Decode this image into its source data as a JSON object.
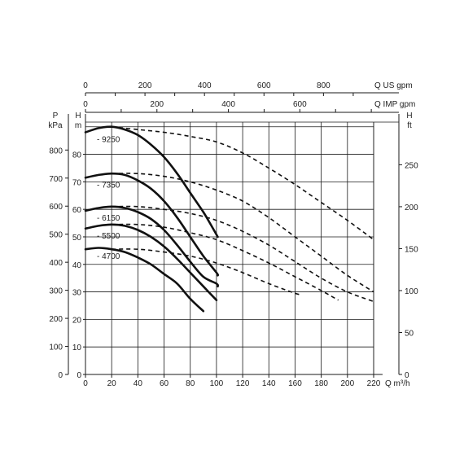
{
  "chart_data": {
    "type": "line",
    "axes": {
      "top_us_gpm": {
        "label": "Q US gpm",
        "ticks": [
          "0",
          "200",
          "400",
          "600",
          "800"
        ],
        "range": [
          0,
          968.7
        ]
      },
      "top_imp_gpm": {
        "label": "Q IMP gpm",
        "ticks": [
          "0",
          "200",
          "400",
          "600"
        ],
        "range": [
          0,
          806.6
        ]
      },
      "bottom_q": {
        "label": "Q m³/h",
        "ticks": [
          "0",
          "20",
          "40",
          "60",
          "80",
          "100",
          "120",
          "140",
          "160",
          "180",
          "200",
          "220"
        ],
        "range": [
          0,
          220
        ]
      },
      "left_kpa": {
        "label_top": "P",
        "label_bottom": "kPa",
        "ticks": [
          "0",
          "100",
          "200",
          "300",
          "400",
          "500",
          "600",
          "700",
          "800"
        ],
        "range": [
          0,
          900
        ]
      },
      "left_m": {
        "label": "H",
        "unit": "m",
        "ticks": [
          "0",
          "10",
          "20",
          "30",
          "40",
          "50",
          "60",
          "70",
          "80"
        ],
        "range": [
          0,
          91.7
        ]
      },
      "right_ft": {
        "label": "H",
        "unit": "ft",
        "ticks": [
          "0",
          "50",
          "100",
          "150",
          "200",
          "250"
        ],
        "range": [
          0,
          301
        ]
      }
    },
    "grid": true,
    "series": [
      {
        "name": "9250",
        "solid": [
          [
            0,
            88
          ],
          [
            10,
            89.5
          ],
          [
            20,
            90
          ],
          [
            30,
            89
          ],
          [
            40,
            87
          ],
          [
            50,
            83.5
          ],
          [
            60,
            79
          ],
          [
            70,
            73
          ],
          [
            80,
            66
          ],
          [
            90,
            59
          ],
          [
            95,
            55
          ],
          [
            101,
            50
          ]
        ],
        "dashed": [
          [
            20,
            90
          ],
          [
            40,
            89
          ],
          [
            60,
            88
          ],
          [
            80,
            86.5
          ],
          [
            100,
            84.5
          ],
          [
            120,
            80.5
          ],
          [
            140,
            75
          ],
          [
            160,
            69
          ],
          [
            180,
            62.5
          ],
          [
            200,
            56
          ],
          [
            220,
            49
          ]
        ]
      },
      {
        "name": "7350",
        "solid": [
          [
            0,
            71.5
          ],
          [
            10,
            72.5
          ],
          [
            20,
            73
          ],
          [
            30,
            72.5
          ],
          [
            40,
            70.5
          ],
          [
            50,
            67.5
          ],
          [
            60,
            63
          ],
          [
            70,
            57
          ],
          [
            80,
            50
          ],
          [
            90,
            43
          ],
          [
            100,
            37
          ],
          [
            101,
            36
          ]
        ],
        "dashed": [
          [
            20,
            73
          ],
          [
            40,
            73
          ],
          [
            60,
            72
          ],
          [
            80,
            70
          ],
          [
            100,
            67
          ],
          [
            120,
            63
          ],
          [
            140,
            57
          ],
          [
            160,
            50
          ],
          [
            180,
            43
          ],
          [
            200,
            36
          ],
          [
            220,
            30
          ]
        ]
      },
      {
        "name": "6150",
        "solid": [
          [
            0,
            59.5
          ],
          [
            10,
            60.5
          ],
          [
            20,
            61
          ],
          [
            30,
            60.5
          ],
          [
            40,
            59
          ],
          [
            50,
            56.5
          ],
          [
            60,
            52.5
          ],
          [
            70,
            47
          ],
          [
            80,
            41
          ],
          [
            90,
            35.5
          ],
          [
            100,
            33
          ],
          [
            101,
            32
          ]
        ],
        "dashed": [
          [
            20,
            61
          ],
          [
            40,
            61
          ],
          [
            60,
            60
          ],
          [
            80,
            58.5
          ],
          [
            100,
            56
          ],
          [
            120,
            52
          ],
          [
            140,
            47
          ],
          [
            160,
            41
          ],
          [
            180,
            35
          ],
          [
            200,
            30
          ],
          [
            220,
            26.5
          ]
        ]
      },
      {
        "name": "5500",
        "solid": [
          [
            0,
            53
          ],
          [
            10,
            54
          ],
          [
            20,
            54.5
          ],
          [
            30,
            54
          ],
          [
            40,
            52.5
          ],
          [
            50,
            50
          ],
          [
            60,
            46.5
          ],
          [
            70,
            42
          ],
          [
            80,
            37
          ],
          [
            90,
            32
          ],
          [
            100,
            27
          ]
        ],
        "dashed": [
          [
            20,
            54.5
          ],
          [
            40,
            54.5
          ],
          [
            60,
            53.5
          ],
          [
            80,
            51.5
          ],
          [
            100,
            49
          ],
          [
            120,
            45
          ],
          [
            140,
            40.5
          ],
          [
            160,
            35.5
          ],
          [
            180,
            30.5
          ],
          [
            193,
            27
          ]
        ]
      },
      {
        "name": "4700",
        "solid": [
          [
            0,
            45.5
          ],
          [
            10,
            46
          ],
          [
            20,
            45.5
          ],
          [
            30,
            44.5
          ],
          [
            40,
            42.5
          ],
          [
            50,
            40
          ],
          [
            60,
            36.5
          ],
          [
            70,
            33
          ],
          [
            80,
            27.5
          ],
          [
            90,
            23
          ]
        ],
        "dashed": [
          [
            20,
            45.5
          ],
          [
            40,
            45.5
          ],
          [
            60,
            44.5
          ],
          [
            80,
            43
          ],
          [
            100,
            40.5
          ],
          [
            120,
            37
          ],
          [
            140,
            33
          ],
          [
            160,
            29.5
          ],
          [
            165,
            29
          ]
        ]
      }
    ]
  }
}
